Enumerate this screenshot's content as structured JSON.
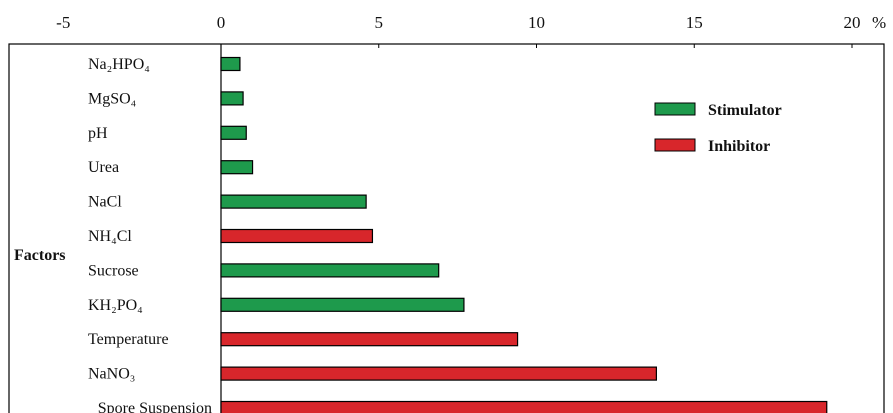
{
  "chart_data": {
    "type": "bar",
    "orientation": "horizontal",
    "axis_label_y": "Factors",
    "x_unit_label": "%",
    "x_ticks": [
      -5,
      0,
      5,
      10,
      15,
      20
    ],
    "xlim": [
      -5.5,
      20.5
    ],
    "x_axis_position": "top",
    "grid": false,
    "legend_position": "top-right",
    "categories": [
      "Na₂HPO₄",
      "MgSO₄",
      "pH",
      "Urea",
      "NaCl",
      "NH₄Cl",
      "Sucrose",
      "KH₂PO₄",
      "Temperature",
      "NaNO₃",
      "Spore Suspension"
    ],
    "values": [
      0.6,
      0.7,
      0.8,
      1.0,
      4.6,
      4.8,
      6.9,
      7.7,
      9.4,
      13.8,
      19.2
    ],
    "effects": [
      "Stimulator",
      "Stimulator",
      "Stimulator",
      "Stimulator",
      "Stimulator",
      "Inhibitor",
      "Stimulator",
      "Stimulator",
      "Inhibitor",
      "Inhibitor",
      "Inhibitor"
    ],
    "series": [
      {
        "name": "Stimulator",
        "color": "#1e9a4c"
      },
      {
        "name": "Inhibitor",
        "color": "#d8262b"
      }
    ]
  }
}
